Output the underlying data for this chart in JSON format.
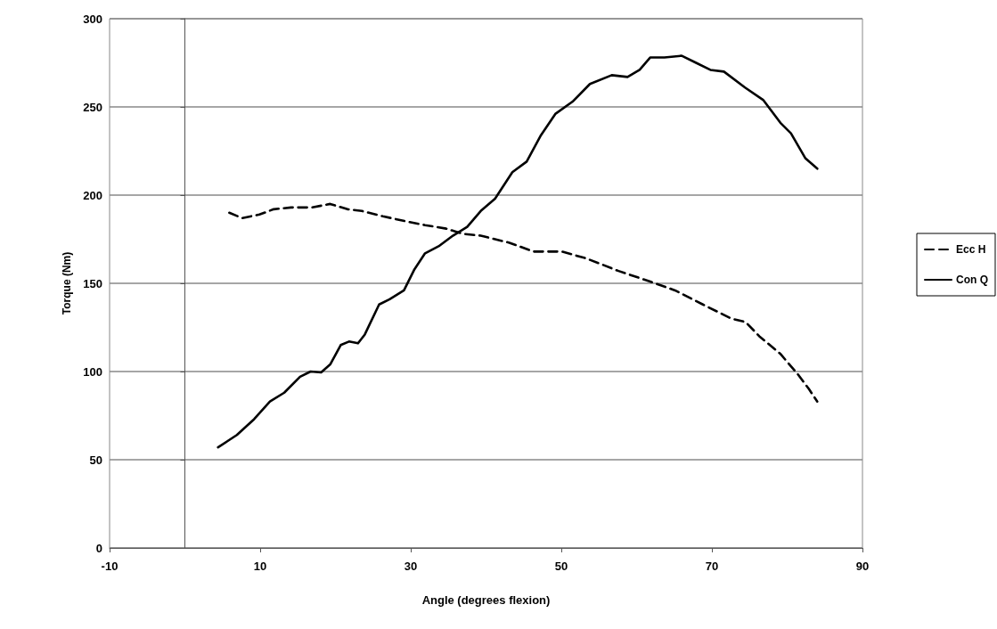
{
  "chart_data": {
    "type": "line",
    "xlabel": "Angle (degrees flexion)",
    "ylabel": "Torque (Nm)",
    "xlim": [
      -10,
      90
    ],
    "xticks": [
      -10,
      10,
      30,
      50,
      70,
      90
    ],
    "ylim": [
      0,
      300
    ],
    "yticks": [
      0,
      50,
      100,
      150,
      200,
      250,
      300
    ],
    "grid": "y",
    "legend": "right",
    "marker": "none",
    "series": [
      {
        "name": "Ecc H",
        "color": "#000000",
        "line_style": "dashed",
        "x": [
          5.9,
          7.6,
          9.9,
          11.8,
          14.1,
          16.9,
          19.3,
          21.6,
          23.5,
          26.3,
          29.5,
          31.9,
          34.7,
          37,
          39.3,
          43.1,
          46.3,
          50.1,
          53.4,
          57.6,
          61.8,
          65.1,
          68.8,
          72.6,
          74.5,
          76.3,
          79.1,
          81.5,
          82.9,
          84
        ],
        "values": [
          190,
          187,
          189,
          192,
          193,
          193,
          195,
          192,
          191,
          188,
          185,
          183,
          181,
          178,
          177,
          173,
          168,
          168,
          164,
          157,
          151,
          146,
          138,
          130,
          128,
          120,
          110,
          98,
          90,
          83
        ]
      },
      {
        "name": "Con Q",
        "color": "#000000",
        "line_style": "solid",
        "x": [
          4.4,
          6.9,
          9.2,
          11.3,
          13.2,
          15.3,
          16.7,
          18.1,
          19.3,
          20.7,
          21.8,
          23,
          23.9,
          25.8,
          27.2,
          29.1,
          30.5,
          31.9,
          33.7,
          35.6,
          37.5,
          39.3,
          41.2,
          43.5,
          45.4,
          47.3,
          49.2,
          51.5,
          53.8,
          56.7,
          58.8,
          60.4,
          61.8,
          63.7,
          66,
          67.9,
          69.8,
          71.6,
          74.4,
          76.8,
          79.1,
          80.5,
          82.4,
          84
        ],
        "values": [
          57,
          64,
          73,
          83,
          88,
          97,
          100,
          99.5,
          104,
          115,
          117,
          116,
          121,
          138,
          141,
          146,
          158,
          167,
          171,
          177,
          182,
          191,
          198,
          213,
          219,
          234,
          246,
          253,
          263,
          268,
          267,
          271,
          278,
          278,
          279,
          275,
          271,
          270,
          261,
          254,
          241,
          235,
          221,
          215
        ]
      }
    ]
  }
}
